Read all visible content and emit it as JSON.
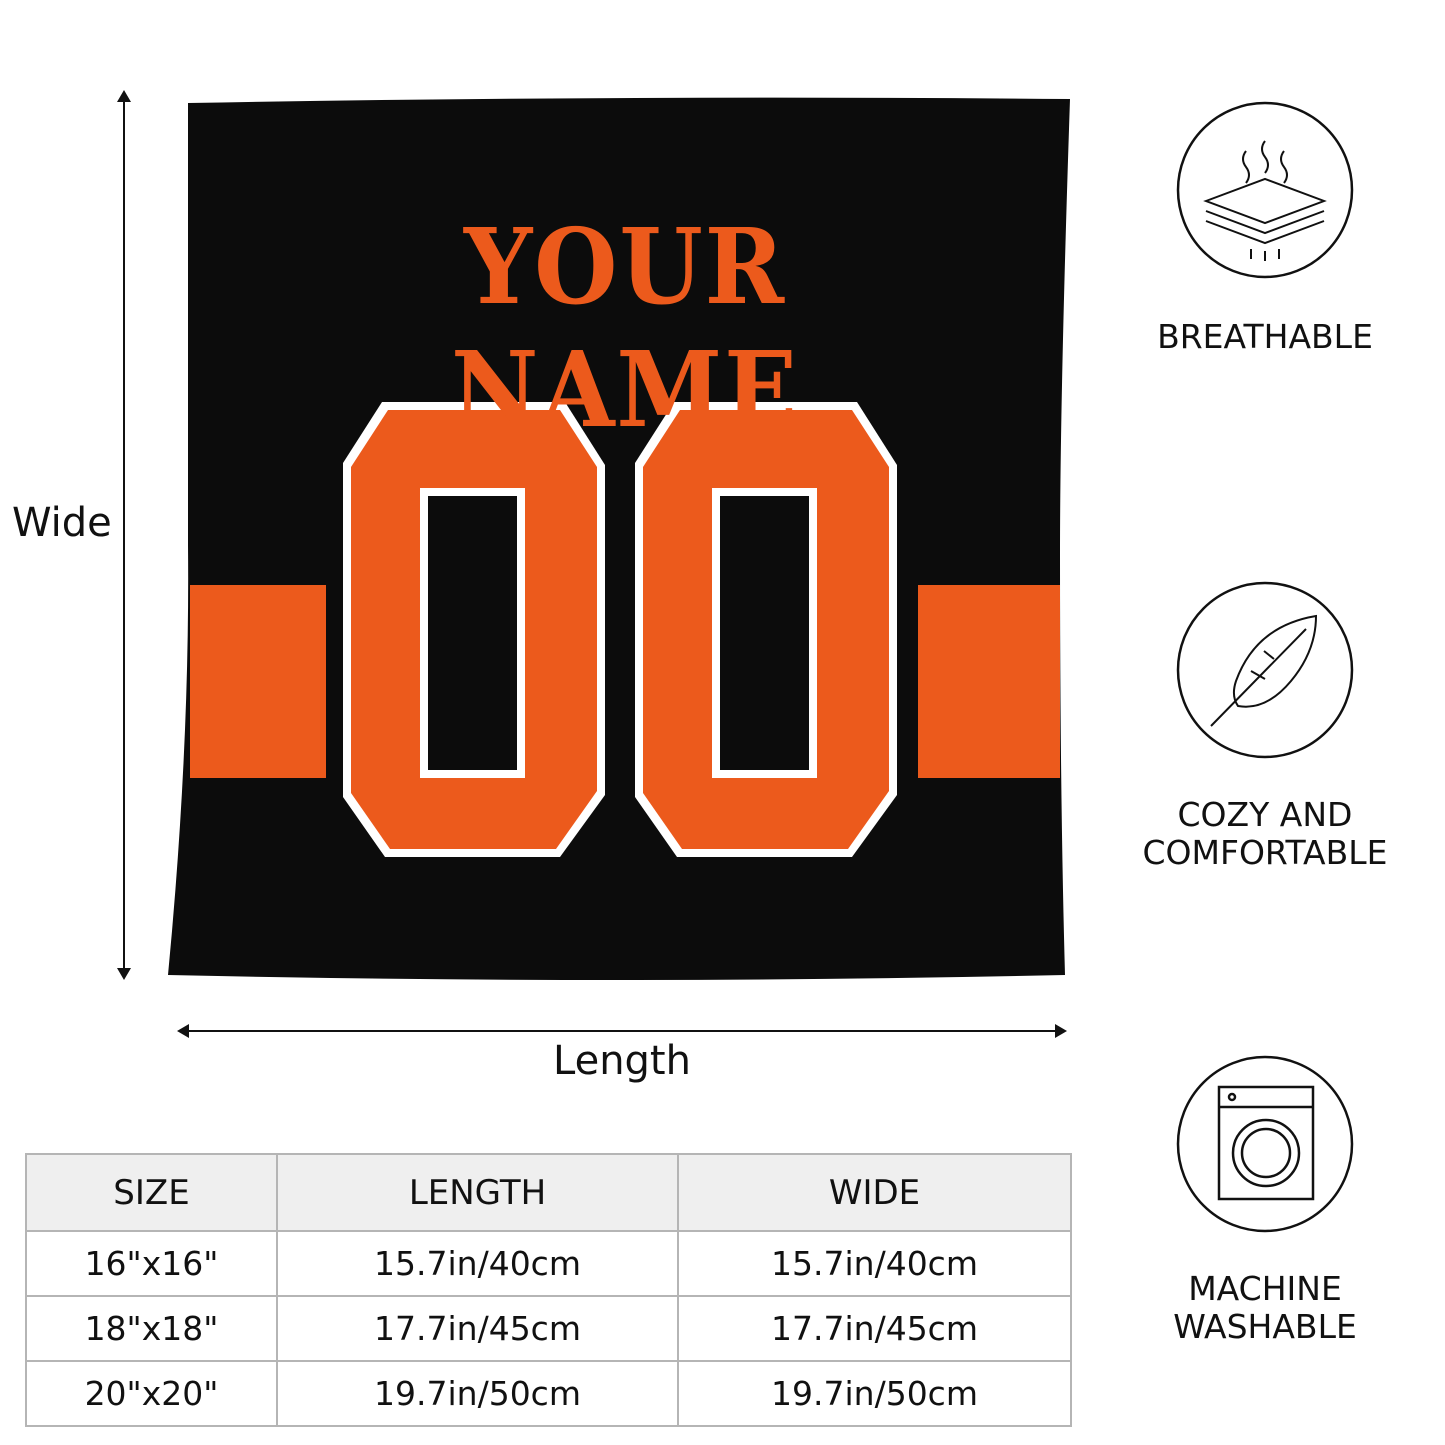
{
  "pillow": {
    "name_text": "YOUR NAME",
    "number_text": "00",
    "colors": {
      "body": "#0c0c0c",
      "accent": "#ec5a1c",
      "outline": "#ffffff"
    }
  },
  "dimensions": {
    "height_label": "Wide",
    "width_label": "Length"
  },
  "features": [
    {
      "label": "BREATHABLE",
      "icon": "breathable-layers-icon"
    },
    {
      "label_line1": "COZY AND",
      "label_line2": "COMFORTABLE",
      "icon": "feather-icon"
    },
    {
      "label_line1": "MACHINE",
      "label_line2": "WASHABLE",
      "icon": "washing-machine-icon"
    }
  ],
  "size_table": {
    "headers": [
      "SIZE",
      "LENGTH",
      "WIDE"
    ],
    "rows": [
      [
        "16\"x16\"",
        "15.7in/40cm",
        "15.7in/40cm"
      ],
      [
        "18\"x18\"",
        "17.7in/45cm",
        "17.7in/45cm"
      ],
      [
        "20\"x20\"",
        "19.7in/50cm",
        "19.7in/50cm"
      ]
    ]
  }
}
